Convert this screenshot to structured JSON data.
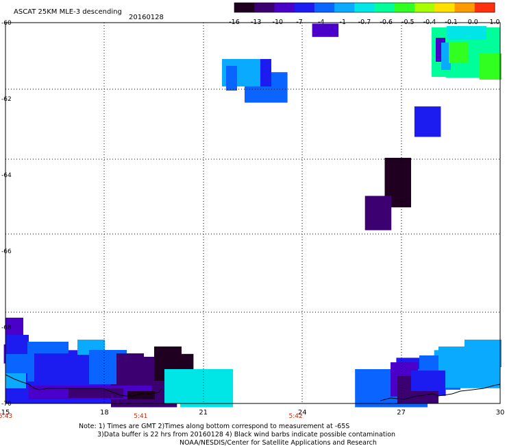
{
  "title": "ASCAT 25KM MLE-3 descending",
  "date": "20160128",
  "colorbar": {
    "labels": [
      "-16",
      "-13",
      "-10",
      "-7",
      "-4",
      "-1",
      "-0.7",
      "-0.6",
      "-0.5",
      "-0.4",
      "-0.1",
      "0.0",
      "1.0"
    ],
    "colors": [
      "#200020",
      "#3c0070",
      "#4a00c8",
      "#1c1cf0",
      "#0a64ff",
      "#0aaaff",
      "#00e6e6",
      "#00ff9a",
      "#30ff20",
      "#a8ff00",
      "#ffe000",
      "#ff9a00",
      "#ff3010"
    ]
  },
  "chart_data": {
    "type": "heatmap",
    "title": "ASCAT 25KM MLE-3 descending",
    "xlim": [
      15,
      30
    ],
    "ylim": [
      -70,
      -60
    ],
    "x_ticks": [
      "15",
      "18",
      "21",
      "24",
      "27",
      "30"
    ],
    "y_ticks": [
      "-60",
      "-62",
      "-64",
      "-66",
      "-68",
      "-70"
    ],
    "time_labels": [
      {
        "x": 15,
        "label": "5:43"
      },
      {
        "x": 19.1,
        "label": "5:41"
      },
      {
        "x": 23.8,
        "label": "5:42"
      }
    ],
    "cells": [
      {
        "lon": 24.7,
        "lat": -60.2,
        "w": 0.8,
        "h": 0.35,
        "value": -10
      },
      {
        "lon": 22.9,
        "lat": -61.7,
        "w": 1.3,
        "h": 0.8,
        "value": -3
      },
      {
        "lon": 27.8,
        "lat": -62.6,
        "w": 0.8,
        "h": 0.8,
        "value": -7
      },
      {
        "lon": 29.1,
        "lat": -60.8,
        "w": 1.5,
        "h": 1.3,
        "value": -0.55
      },
      {
        "lon": 26.9,
        "lat": -64.0,
        "w": 0.8,
        "h": 0.9,
        "value": -16
      },
      {
        "lon": 26.9,
        "lat": -64.4,
        "w": 0.8,
        "h": 0.9,
        "value": -16
      },
      {
        "lon": 26.3,
        "lat": -65.0,
        "w": 0.8,
        "h": 0.9,
        "value": -13
      },
      {
        "lon": 15.2,
        "lat": -68.7,
        "w": 0.5,
        "h": 0.5,
        "value": -10
      },
      {
        "lon": 16.6,
        "lat": -69.3,
        "w": 3.2,
        "h": 1.4,
        "value": -7
      },
      {
        "lon": 19.2,
        "lat": -69.6,
        "w": 2.0,
        "h": 1.0,
        "value": -13
      },
      {
        "lon": 20.3,
        "lat": -69.1,
        "w": 0.8,
        "h": 0.8,
        "value": -16
      },
      {
        "lon": 21.1,
        "lat": -69.6,
        "w": 1.6,
        "h": 1.0,
        "value": -0.7
      },
      {
        "lon": 26.7,
        "lat": -69.6,
        "w": 2.2,
        "h": 1.0,
        "value": -4
      },
      {
        "lon": 27.6,
        "lat": -69.3,
        "w": 1.5,
        "h": 1.0,
        "value": -7
      },
      {
        "lon": 29.0,
        "lat": -69.1,
        "w": 2.0,
        "h": 1.0,
        "value": -1
      }
    ]
  },
  "notes": {
    "line1": "Note: 1) Times are GMT 2)Times along bottom correspond to measurement at -65S",
    "line2": "3)Data buffer is 22 hrs from 20160128 4) Black wind barbs indicate possible contamination",
    "line3": "NOAA/NESDIS/Center for Satellite Applications and Research"
  }
}
